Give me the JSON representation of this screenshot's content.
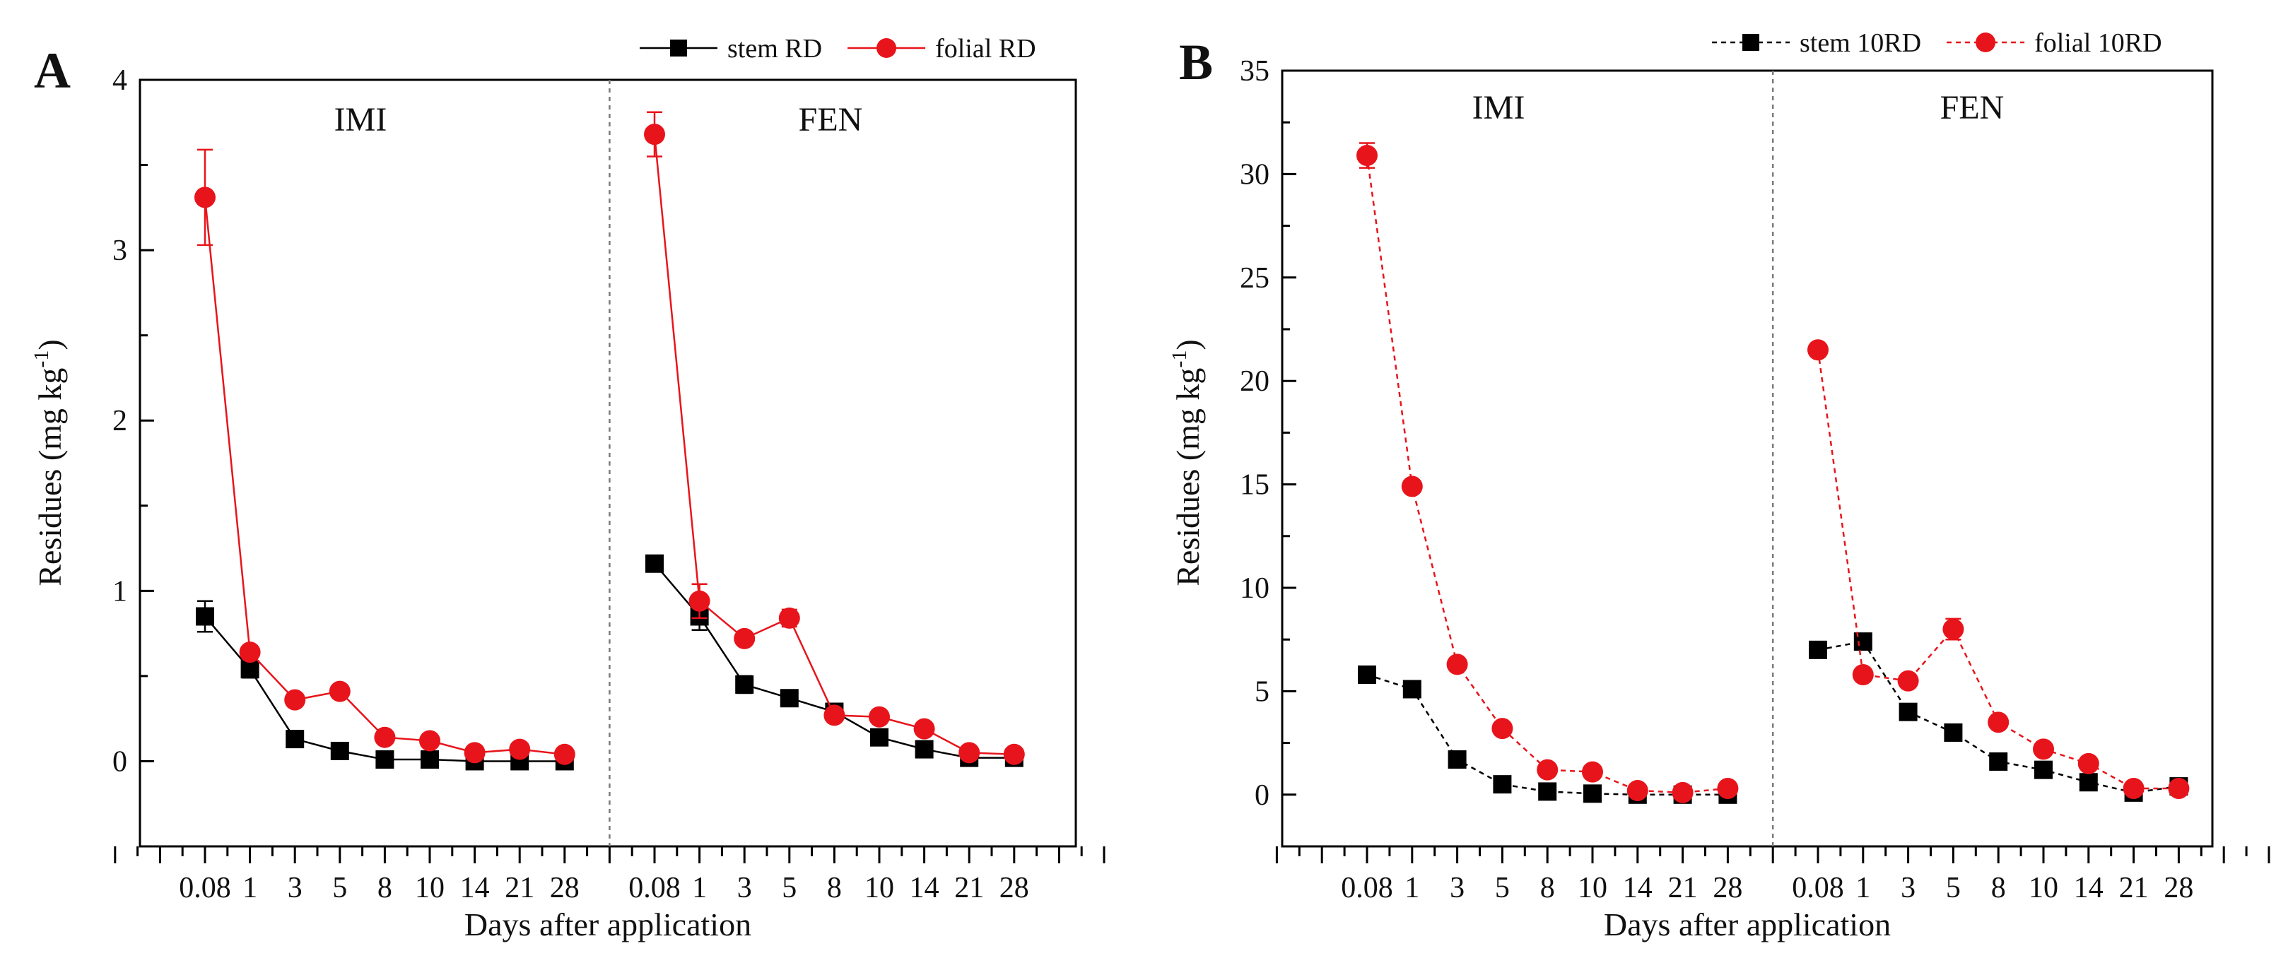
{
  "colors": {
    "stem": "#000000",
    "folial": "#e8141b",
    "axis": "#000000",
    "divider": "#7a7a7a"
  },
  "chart_data": [
    {
      "type": "line",
      "panel_label": "A",
      "xlabel": "Days after application",
      "ylabel_main": "Residues (mg kg",
      "ylabel_sup": "-1",
      "ylabel_end": ")",
      "ylim": [
        -0.5,
        4
      ],
      "yticks": [
        "0",
        "1",
        "2",
        "3",
        "4"
      ],
      "grid": false,
      "legend": "top-right",
      "groups": [
        {
          "name": "IMI",
          "categories": [
            "0.08",
            "1",
            "3",
            "5",
            "8",
            "10",
            "14",
            "21",
            "28"
          ]
        },
        {
          "name": "FEN",
          "categories": [
            "0.08",
            "1",
            "3",
            "5",
            "8",
            "10",
            "14",
            "21",
            "28"
          ]
        }
      ],
      "series": [
        {
          "name": "stem RD",
          "marker": "square",
          "line_style": "solid",
          "color_key": "stem",
          "values": [
            [
              0.85,
              0.54,
              0.13,
              0.06,
              0.01,
              0.01,
              0.0,
              0.0,
              0.0
            ],
            [
              1.16,
              0.85,
              0.45,
              0.37,
              0.29,
              0.14,
              0.07,
              0.02,
              0.02
            ]
          ],
          "errors": [
            [
              0.09,
              0.05,
              0.02,
              0.01,
              0.0,
              0.0,
              0.0,
              0.0,
              0.0
            ],
            [
              0.04,
              0.08,
              0.05,
              0.02,
              0.02,
              0.01,
              0.01,
              0.0,
              0.0
            ]
          ]
        },
        {
          "name": "folial RD",
          "marker": "circle",
          "line_style": "solid",
          "color_key": "folial",
          "values": [
            [
              3.31,
              0.64,
              0.36,
              0.41,
              0.14,
              0.12,
              0.05,
              0.07,
              0.04
            ],
            [
              3.68,
              0.94,
              0.72,
              0.84,
              0.27,
              0.26,
              0.19,
              0.05,
              0.04
            ]
          ],
          "errors": [
            [
              0.28,
              0.03,
              0.02,
              0.02,
              0.01,
              0.01,
              0.01,
              0.01,
              0.01
            ],
            [
              0.13,
              0.1,
              0.03,
              0.05,
              0.02,
              0.02,
              0.02,
              0.01,
              0.01
            ]
          ]
        }
      ]
    },
    {
      "type": "line",
      "panel_label": "B",
      "xlabel": "Days after application",
      "ylabel_main": "Residues (mg kg",
      "ylabel_sup": "-1",
      "ylabel_end": ")",
      "ylim": [
        -2.5,
        35
      ],
      "yticks": [
        "0",
        "5",
        "10",
        "15",
        "20",
        "25",
        "30",
        "35"
      ],
      "grid": false,
      "legend": "top-right",
      "groups": [
        {
          "name": "IMI",
          "categories": [
            "0.08",
            "1",
            "3",
            "5",
            "8",
            "10",
            "14",
            "21",
            "28"
          ]
        },
        {
          "name": "FEN",
          "categories": [
            "0.08",
            "1",
            "3",
            "5",
            "8",
            "10",
            "14",
            "21",
            "28"
          ]
        }
      ],
      "series": [
        {
          "name": "stem 10RD",
          "marker": "square",
          "line_style": "dashed",
          "color_key": "stem",
          "values": [
            [
              5.8,
              5.1,
              1.7,
              0.5,
              0.15,
              0.05,
              0.0,
              0.0,
              0.0
            ],
            [
              7.0,
              7.4,
              4.0,
              3.0,
              1.6,
              1.2,
              0.6,
              0.1,
              0.4
            ]
          ],
          "errors": [
            [
              0.2,
              0.2,
              0.1,
              0.05,
              0.02,
              0.02,
              0.0,
              0.0,
              0.0
            ],
            [
              0.2,
              0.3,
              0.2,
              0.1,
              0.1,
              0.1,
              0.05,
              0.02,
              0.03
            ]
          ]
        },
        {
          "name": "folial 10RD",
          "marker": "circle",
          "line_style": "dashed",
          "color_key": "folial",
          "values": [
            [
              30.9,
              14.9,
              6.3,
              3.2,
              1.2,
              1.1,
              0.2,
              0.1,
              0.3
            ],
            [
              21.5,
              5.8,
              5.5,
              8.0,
              3.5,
              2.2,
              1.5,
              0.3,
              0.3
            ]
          ],
          "errors": [
            [
              0.6,
              0.3,
              0.2,
              0.1,
              0.05,
              0.05,
              0.02,
              0.02,
              0.02
            ],
            [
              0.3,
              0.2,
              0.2,
              0.5,
              0.1,
              0.1,
              0.05,
              0.02,
              0.02
            ]
          ]
        }
      ]
    }
  ]
}
